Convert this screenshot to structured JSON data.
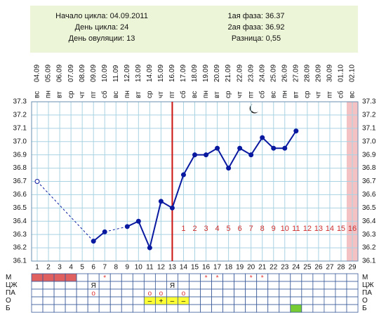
{
  "header": {
    "left": [
      "Начало цикла: 04.09.2011",
      "День цикла: 24",
      "День овуляции: 13"
    ],
    "right": [
      "1ая фаза: 36.37",
      "2ая фаза: 36.92",
      "Разница: 0,55"
    ]
  },
  "chart_data": {
    "type": "line",
    "x": [
      1,
      2,
      3,
      4,
      5,
      6,
      7,
      8,
      9,
      10,
      11,
      12,
      13,
      14,
      15,
      16,
      17,
      18,
      19,
      20,
      21,
      22,
      23,
      24,
      25,
      26,
      27,
      28,
      29
    ],
    "dates": [
      "04.09",
      "05.09",
      "06.09",
      "07.09",
      "08.09",
      "09.09",
      "10.09",
      "11.09",
      "12.09",
      "13.09",
      "14.09",
      "15.09",
      "16.09",
      "17.09",
      "18.09",
      "19.09",
      "20.09",
      "21.09",
      "22.09",
      "23.09",
      "24.09",
      "25.09",
      "26.09",
      "27.09",
      "28.09",
      "29.09",
      "30.09",
      "01.10",
      "02.10"
    ],
    "weekdays": [
      "вс",
      "пн",
      "вт",
      "ср",
      "чт",
      "пт",
      "сб",
      "вс",
      "пн",
      "вт",
      "ср",
      "чт",
      "пт",
      "сб",
      "вс",
      "пн",
      "вт",
      "ср",
      "чт",
      "пт",
      "сб",
      "вс",
      "пн",
      "вт",
      "ср",
      "чт",
      "пт",
      "сб",
      "вс"
    ],
    "series": [
      {
        "name": "temperature",
        "color": "#0a1aa0",
        "values": [
          36.7,
          null,
          null,
          null,
          null,
          36.25,
          36.32,
          null,
          36.36,
          36.4,
          36.2,
          36.55,
          36.5,
          36.75,
          36.9,
          36.9,
          36.95,
          36.8,
          36.95,
          36.9,
          37.03,
          36.95,
          36.95,
          37.08,
          null,
          null,
          null,
          null,
          null
        ]
      }
    ],
    "ylim": [
      36.1,
      37.3
    ],
    "yticks": [
      36.1,
      36.2,
      36.3,
      36.4,
      36.5,
      36.6,
      36.7,
      36.8,
      36.9,
      {
        "value": 37,
        "label": "37.0"
      },
      37.1,
      37.2,
      37.3
    ],
    "grid": true,
    "ovulation_day": 13,
    "ovulation_color": "#cc1111",
    "highlight_day": 29,
    "highlight_color": "#f5c2c4",
    "phase_two_days": [
      1,
      2,
      3,
      4,
      5,
      6,
      7,
      8,
      9,
      10,
      11,
      12,
      13,
      14,
      15,
      16
    ],
    "observations": [
      {
        "label": "М",
        "cells": [
          null,
          null,
          null,
          null,
          null,
          null,
          "*",
          null,
          null,
          null,
          null,
          null,
          null,
          null,
          null,
          "*",
          "*",
          null,
          null,
          "*",
          "*",
          null,
          null,
          null,
          null,
          null,
          null,
          null,
          null
        ],
        "fills": [
          "#e06060",
          "#e06060",
          "#e06060",
          "#e06060",
          null,
          null,
          null,
          null,
          null,
          null,
          null,
          null,
          null,
          null,
          null,
          null,
          null,
          null,
          null,
          null,
          null,
          null,
          null,
          null,
          null,
          null,
          null,
          null,
          null
        ]
      },
      {
        "label": "ЦЖ",
        "cells": [
          null,
          null,
          null,
          null,
          null,
          "Я",
          null,
          null,
          null,
          null,
          null,
          null,
          "Я",
          null,
          null,
          null,
          null,
          null,
          null,
          null,
          null,
          null,
          null,
          null,
          null,
          null,
          null,
          null,
          null
        ],
        "fills": [
          null,
          null,
          null,
          null,
          null,
          null,
          null,
          null,
          null,
          null,
          null,
          null,
          null,
          null,
          null,
          null,
          null,
          null,
          null,
          null,
          null,
          null,
          null,
          null,
          null,
          null,
          null,
          null,
          null
        ]
      },
      {
        "label": "ПА",
        "cells": [
          null,
          null,
          null,
          null,
          null,
          "o",
          null,
          null,
          null,
          null,
          "o",
          "o",
          null,
          "o",
          null,
          null,
          null,
          null,
          null,
          null,
          null,
          null,
          null,
          null,
          null,
          null,
          null,
          null,
          null
        ],
        "fills": [
          null,
          null,
          null,
          null,
          null,
          null,
          null,
          null,
          null,
          null,
          null,
          null,
          null,
          null,
          null,
          null,
          null,
          null,
          null,
          null,
          null,
          null,
          null,
          null,
          null,
          null,
          null,
          null,
          null
        ]
      },
      {
        "label": "О",
        "cells": [
          null,
          null,
          null,
          null,
          null,
          null,
          null,
          null,
          null,
          null,
          "–",
          "+",
          "–",
          "–",
          null,
          null,
          null,
          null,
          null,
          null,
          null,
          null,
          null,
          null,
          null,
          null,
          null,
          null,
          null
        ],
        "fills": [
          null,
          null,
          null,
          null,
          null,
          null,
          null,
          null,
          null,
          null,
          "#ffff33",
          "#ffff33",
          "#ffff33",
          "#ffff33",
          null,
          null,
          null,
          null,
          null,
          null,
          null,
          null,
          null,
          null,
          null,
          null,
          null,
          null,
          null
        ]
      },
      {
        "label": "Б",
        "cells": [
          null,
          null,
          null,
          null,
          null,
          null,
          null,
          null,
          null,
          null,
          null,
          null,
          null,
          null,
          null,
          null,
          null,
          null,
          null,
          null,
          null,
          null,
          null,
          null,
          null,
          null,
          null,
          null,
          null
        ],
        "fills": [
          null,
          null,
          null,
          null,
          null,
          null,
          null,
          null,
          null,
          null,
          null,
          null,
          null,
          null,
          null,
          null,
          null,
          null,
          null,
          null,
          null,
          null,
          null,
          "#77cc33",
          null,
          null,
          null,
          null,
          null
        ]
      }
    ]
  }
}
